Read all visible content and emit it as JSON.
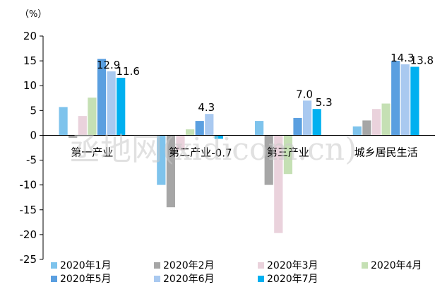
{
  "chart_data": {
    "type": "bar",
    "unit_label": "（%）",
    "categories": [
      "第一产业",
      "第二产业",
      "第三产业",
      "城乡居民生活"
    ],
    "ylim": [
      -25,
      20
    ],
    "yticks": [
      20,
      15,
      10,
      5,
      0,
      -5,
      -10,
      -15,
      -20,
      -25
    ],
    "grid": false,
    "legend_position": "bottom",
    "series": [
      {
        "name": "2020年1月",
        "color": "#7ec3ec",
        "values": [
          5.7,
          -10.0,
          2.9,
          1.8
        ]
      },
      {
        "name": "2020年2月",
        "color": "#a6a6a6",
        "values": [
          -0.5,
          -14.5,
          -10.0,
          3.0
        ]
      },
      {
        "name": "2020年3月",
        "color": "#ead2dc",
        "values": [
          3.9,
          -3.0,
          -19.7,
          5.3
        ]
      },
      {
        "name": "2020年4月",
        "color": "#c5e0b4",
        "values": [
          7.6,
          1.2,
          -7.8,
          6.4
        ]
      },
      {
        "name": "2020年5月",
        "color": "#5a9fe0",
        "values": [
          15.4,
          2.9,
          3.5,
          15.0
        ]
      },
      {
        "name": "2020年6月",
        "color": "#a9c9f0",
        "values": [
          12.9,
          4.3,
          7.0,
          14.3
        ]
      },
      {
        "name": "2020年7月",
        "color": "#00b0f0",
        "values": [
          11.6,
          -0.7,
          5.3,
          13.8
        ]
      }
    ],
    "data_labels": [
      {
        "text": "12.9",
        "series": 5,
        "category": 0
      },
      {
        "text": "11.6",
        "series": 6,
        "category": 0
      },
      {
        "text": "4.3",
        "series": 5,
        "category": 1
      },
      {
        "text": "-0.7",
        "series": 6,
        "category": 1
      },
      {
        "text": "7.0",
        "series": 5,
        "category": 2
      },
      {
        "text": "5.3",
        "series": 6,
        "category": 2
      },
      {
        "text": "14.3",
        "series": 5,
        "category": 3
      },
      {
        "text": "13.8",
        "series": 6,
        "category": 3
      }
    ]
  },
  "watermark": {
    "text": "丞地网(xidicom.cn)"
  }
}
